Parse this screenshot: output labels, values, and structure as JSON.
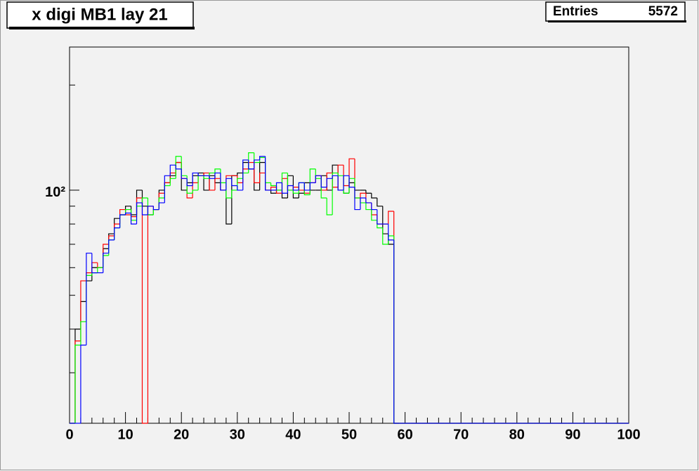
{
  "chart_data": {
    "type": "step-histogram",
    "title": "x digi MB1 lay 21",
    "stats": {
      "label": "Entries",
      "value": 5572
    },
    "log_y": true,
    "xlim": [
      0,
      100
    ],
    "xticks": [
      0,
      10,
      20,
      30,
      40,
      50,
      60,
      70,
      80,
      90,
      100
    ],
    "xminorticks": [
      2,
      4,
      6,
      8,
      12,
      14,
      16,
      18,
      22,
      24,
      26,
      28,
      32,
      34,
      36,
      38,
      42,
      44,
      46,
      48,
      52,
      54,
      56,
      58,
      62,
      64,
      66,
      68,
      72,
      74,
      76,
      78,
      82,
      84,
      86,
      88,
      92,
      94,
      96,
      98
    ],
    "ylim": [
      21.5,
      257
    ],
    "yticks": [
      {
        "value": 100,
        "label": "10²"
      }
    ],
    "yminorticks": [
      30,
      40,
      50,
      60,
      70,
      80,
      90,
      200
    ],
    "bins": [
      0,
      1,
      2,
      3,
      4,
      5,
      6,
      7,
      8,
      9,
      10,
      11,
      12,
      13,
      14,
      15,
      16,
      17,
      18,
      19,
      20,
      21,
      22,
      23,
      24,
      25,
      26,
      27,
      28,
      29,
      30,
      31,
      32,
      33,
      34,
      35,
      36,
      37,
      38,
      39,
      40,
      41,
      42,
      43,
      44,
      45,
      46,
      47,
      48,
      49,
      50,
      51,
      52,
      53,
      54,
      55,
      56,
      57,
      58,
      59,
      60,
      61,
      62,
      63,
      64,
      65,
      66,
      67,
      68,
      69,
      70,
      71,
      72,
      73,
      74,
      75,
      76,
      77,
      78,
      79,
      80,
      81,
      82,
      83,
      84,
      85,
      86,
      87,
      88,
      89,
      90,
      91,
      92,
      93,
      94,
      95,
      96,
      97,
      98,
      99,
      100
    ],
    "series": [
      {
        "color": "#000000",
        "values": [
          0,
          40,
          48,
          55,
          60,
          60,
          68,
          75,
          83,
          85,
          90,
          85,
          100,
          90,
          85,
          88,
          100,
          105,
          110,
          120,
          100,
          105,
          110,
          112,
          100,
          110,
          105,
          100,
          80,
          110,
          112,
          120,
          115,
          100,
          120,
          100,
          98,
          100,
          95,
          110,
          95,
          98,
          105,
          100,
          100,
          110,
          100,
          118,
          100,
          98,
          105,
          100,
          100,
          98,
          95,
          90,
          75,
          70,
          0,
          0,
          0,
          0,
          0,
          0,
          0,
          0,
          0,
          0,
          0,
          0,
          0,
          0,
          0,
          0,
          0,
          0,
          0,
          0,
          0,
          0,
          0,
          0,
          0,
          0,
          0,
          0,
          0,
          0,
          0,
          0,
          0,
          0,
          0,
          0,
          0,
          0,
          0,
          0,
          0,
          0
        ]
      },
      {
        "color": "#ff0000",
        "values": [
          0,
          37,
          55,
          58,
          62,
          60,
          70,
          74,
          80,
          88,
          85,
          84,
          95,
          0,
          90,
          88,
          98,
          105,
          112,
          120,
          108,
          95,
          105,
          110,
          112,
          100,
          108,
          100,
          110,
          110,
          105,
          115,
          120,
          105,
          112,
          100,
          102,
          98,
          108,
          100,
          102,
          100,
          98,
          105,
          110,
          100,
          112,
          102,
          118,
          103,
          123,
          95,
          98,
          92,
          85,
          80,
          80,
          87,
          0,
          0,
          0,
          0,
          0,
          0,
          0,
          0,
          0,
          0,
          0,
          0,
          0,
          0,
          0,
          0,
          0,
          0,
          0,
          0,
          0,
          0,
          0,
          0,
          0,
          0,
          0,
          0,
          0,
          0,
          0,
          0,
          0,
          0,
          0,
          0,
          0,
          0,
          0,
          0,
          0,
          0
        ]
      },
      {
        "color": "#00ff00",
        "values": [
          0,
          36,
          42,
          57,
          58,
          60,
          65,
          72,
          78,
          85,
          88,
          82,
          90,
          95,
          85,
          88,
          95,
          103,
          108,
          125,
          110,
          98,
          100,
          110,
          108,
          112,
          115,
          105,
          95,
          100,
          108,
          112,
          128,
          120,
          124,
          105,
          103,
          100,
          112,
          100,
          98,
          105,
          97,
          115,
          108,
          95,
          85,
          112,
          110,
          98,
          108,
          95,
          92,
          88,
          82,
          78,
          70,
          74,
          0,
          0,
          0,
          0,
          0,
          0,
          0,
          0,
          0,
          0,
          0,
          0,
          0,
          0,
          0,
          0,
          0,
          0,
          0,
          0,
          0,
          0,
          0,
          0,
          0,
          0,
          0,
          0,
          0,
          0,
          0,
          0,
          0,
          0,
          0,
          0,
          0,
          0,
          0,
          0,
          0,
          0
        ]
      },
      {
        "color": "#0000ff",
        "values": [
          0,
          0,
          36,
          66,
          58,
          58,
          66,
          72,
          78,
          85,
          86,
          80,
          92,
          85,
          90,
          88,
          92,
          110,
          118,
          115,
          108,
          103,
          112,
          110,
          110,
          108,
          112,
          100,
          108,
          103,
          100,
          122,
          115,
          122,
          125,
          100,
          100,
          105,
          98,
          103,
          100,
          105,
          100,
          105,
          110,
          102,
          108,
          110,
          100,
          110,
          102,
          88,
          95,
          92,
          88,
          80,
          80,
          72,
          0,
          0,
          0,
          0,
          0,
          0,
          0,
          0,
          0,
          0,
          0,
          0,
          0,
          0,
          0,
          0,
          0,
          0,
          0,
          0,
          0,
          0,
          0,
          0,
          0,
          0,
          0,
          0,
          0,
          0,
          0,
          0,
          0,
          0,
          0,
          0,
          0,
          0,
          0,
          0,
          0,
          0
        ]
      }
    ]
  }
}
